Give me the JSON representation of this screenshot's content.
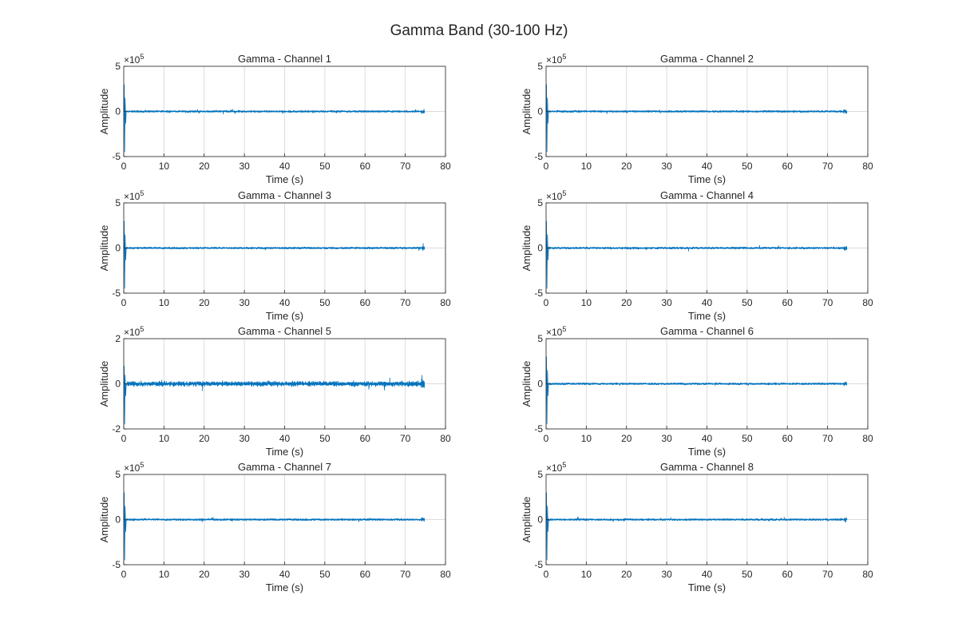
{
  "figure_title": "Gamma Band (30-100 Hz)",
  "colors": {
    "signal": "#0072BD",
    "grid": "#dcdcdc",
    "axes": "#262626",
    "background": "#ffffff"
  },
  "chart_data": [
    {
      "type": "line",
      "title": "Gamma - Channel 1",
      "xlabel": "Time (s)",
      "ylabel": "Amplitude",
      "xlim": [
        0,
        80
      ],
      "ylim": [
        -500000,
        500000
      ],
      "xticks": [
        "0",
        "10",
        "20",
        "30",
        "40",
        "50",
        "60",
        "70",
        "80"
      ],
      "yticks": [
        "-5",
        "0",
        "5"
      ],
      "exponent_label": "×10^5",
      "grid": true,
      "series": [
        {
          "x_range": [
            0,
            74.8
          ],
          "baseline": 0,
          "typical_amplitude": 15000,
          "onset_peak": 300000,
          "onset_trough": -450000
        }
      ]
    },
    {
      "type": "line",
      "title": "Gamma - Channel 2",
      "xlabel": "Time (s)",
      "ylabel": "Amplitude",
      "xlim": [
        0,
        80
      ],
      "ylim": [
        -500000,
        500000
      ],
      "xticks": [
        "0",
        "10",
        "20",
        "30",
        "40",
        "50",
        "60",
        "70",
        "80"
      ],
      "yticks": [
        "-5",
        "0",
        "5"
      ],
      "exponent_label": "×10^5",
      "grid": true,
      "series": [
        {
          "x_range": [
            0,
            74.8
          ],
          "baseline": 0,
          "typical_amplitude": 15000,
          "onset_peak": 300000,
          "onset_trough": -450000
        }
      ]
    },
    {
      "type": "line",
      "title": "Gamma - Channel 3",
      "xlabel": "Time (s)",
      "ylabel": "Amplitude",
      "xlim": [
        0,
        80
      ],
      "ylim": [
        -500000,
        500000
      ],
      "xticks": [
        "0",
        "10",
        "20",
        "30",
        "40",
        "50",
        "60",
        "70",
        "80"
      ],
      "yticks": [
        "-5",
        "0",
        "5"
      ],
      "exponent_label": "×10^5",
      "grid": true,
      "series": [
        {
          "x_range": [
            0,
            74.8
          ],
          "baseline": 0,
          "typical_amplitude": 15000,
          "onset_peak": 300000,
          "onset_trough": -450000
        }
      ]
    },
    {
      "type": "line",
      "title": "Gamma - Channel 4",
      "xlabel": "Time (s)",
      "ylabel": "Amplitude",
      "xlim": [
        0,
        80
      ],
      "ylim": [
        -500000,
        500000
      ],
      "xticks": [
        "0",
        "10",
        "20",
        "30",
        "40",
        "50",
        "60",
        "70",
        "80"
      ],
      "yticks": [
        "-5",
        "0",
        "5"
      ],
      "exponent_label": "×10^5",
      "grid": true,
      "series": [
        {
          "x_range": [
            0,
            74.8
          ],
          "baseline": 0,
          "typical_amplitude": 15000,
          "onset_peak": 300000,
          "onset_trough": -450000
        }
      ]
    },
    {
      "type": "line",
      "title": "Gamma - Channel 5",
      "xlabel": "Time (s)",
      "ylabel": "Amplitude",
      "xlim": [
        0,
        80
      ],
      "ylim": [
        -200000,
        200000
      ],
      "xticks": [
        "0",
        "10",
        "20",
        "30",
        "40",
        "50",
        "60",
        "70",
        "80"
      ],
      "yticks": [
        "-2",
        "0",
        "2"
      ],
      "exponent_label": "×10^5",
      "grid": true,
      "series": [
        {
          "x_range": [
            0,
            74.8
          ],
          "baseline": 0,
          "typical_amplitude": 15000,
          "onset_peak": 80000,
          "onset_trough": -180000
        }
      ]
    },
    {
      "type": "line",
      "title": "Gamma - Channel 6",
      "xlabel": "Time (s)",
      "ylabel": "Amplitude",
      "xlim": [
        0,
        80
      ],
      "ylim": [
        -500000,
        500000
      ],
      "xticks": [
        "0",
        "10",
        "20",
        "30",
        "40",
        "50",
        "60",
        "70",
        "80"
      ],
      "yticks": [
        "-5",
        "0",
        "5"
      ],
      "exponent_label": "×10^5",
      "grid": true,
      "series": [
        {
          "x_range": [
            0,
            74.8
          ],
          "baseline": 0,
          "typical_amplitude": 15000,
          "onset_peak": 300000,
          "onset_trough": -450000
        }
      ]
    },
    {
      "type": "line",
      "title": "Gamma - Channel 7",
      "xlabel": "Time (s)",
      "ylabel": "Amplitude",
      "xlim": [
        0,
        80
      ],
      "ylim": [
        -500000,
        500000
      ],
      "xticks": [
        "0",
        "10",
        "20",
        "30",
        "40",
        "50",
        "60",
        "70",
        "80"
      ],
      "yticks": [
        "-5",
        "0",
        "5"
      ],
      "exponent_label": "×10^5",
      "grid": true,
      "series": [
        {
          "x_range": [
            0,
            74.8
          ],
          "baseline": 0,
          "typical_amplitude": 15000,
          "onset_peak": 300000,
          "onset_trough": -450000
        }
      ]
    },
    {
      "type": "line",
      "title": "Gamma - Channel 8",
      "xlabel": "Time (s)",
      "ylabel": "Amplitude",
      "xlim": [
        0,
        80
      ],
      "ylim": [
        -500000,
        500000
      ],
      "xticks": [
        "0",
        "10",
        "20",
        "30",
        "40",
        "50",
        "60",
        "70",
        "80"
      ],
      "yticks": [
        "-5",
        "0",
        "5"
      ],
      "exponent_label": "×10^5",
      "grid": true,
      "series": [
        {
          "x_range": [
            0,
            74.8
          ],
          "baseline": 0,
          "typical_amplitude": 15000,
          "onset_peak": 300000,
          "onset_trough": -450000
        }
      ]
    }
  ]
}
